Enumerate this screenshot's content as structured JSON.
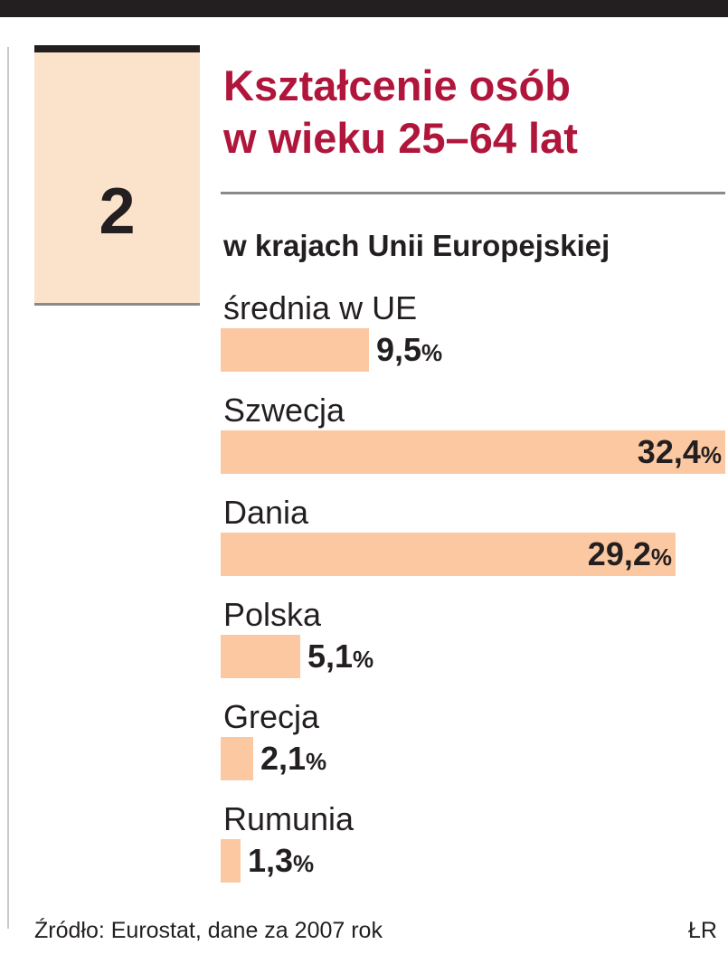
{
  "graphic": {
    "number": "2",
    "title_line1": "Kształcenie osób",
    "title_line2": "w wieku 25–64 lat",
    "subtitle": "w krajach Unii Europejskiej",
    "source": "Źródło: Eurostat, dane za 2007 rok",
    "credit": "ŁR"
  },
  "colors": {
    "title": "#b0163c",
    "bar": "#fbc8a2",
    "number_box": "#fbe2cb",
    "text": "#231f20"
  },
  "chart_data": {
    "type": "bar",
    "orientation": "horizontal",
    "title": "Kształcenie osób w wieku 25–64 lat",
    "subtitle": "w krajach Unii Europejskiej",
    "unit": "%",
    "categories": [
      "średnia w UE",
      "Szwecja",
      "Dania",
      "Polska",
      "Grecja",
      "Rumunia"
    ],
    "values": [
      9.5,
      32.4,
      29.2,
      5.1,
      2.1,
      1.3
    ],
    "value_labels": [
      "9,5",
      "32,4",
      "29,2",
      "5,1",
      "2,1",
      "1,3"
    ],
    "xlim": [
      0,
      32.4
    ],
    "grid": false,
    "legend": "none"
  }
}
